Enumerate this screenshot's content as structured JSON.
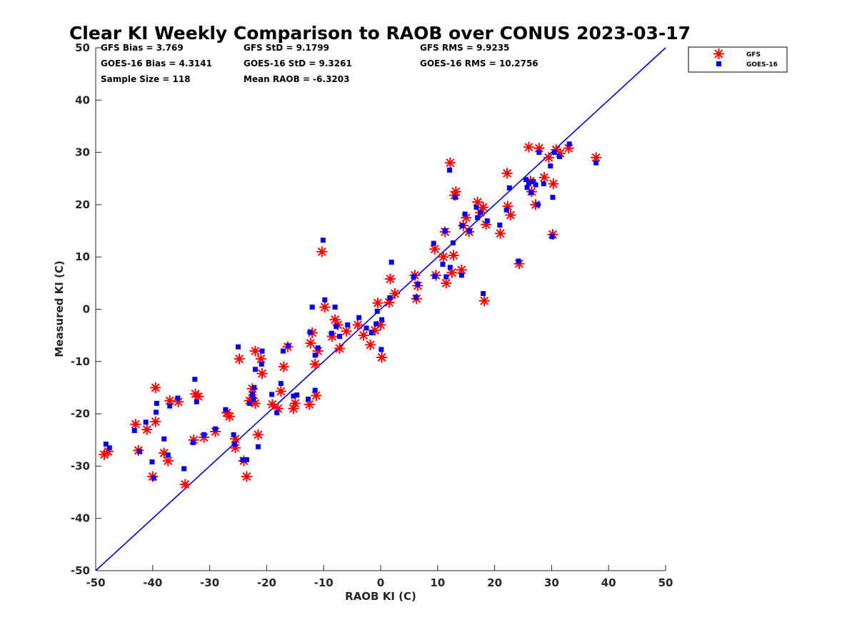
{
  "chart_data": {
    "type": "scatter",
    "title": "Clear KI Weekly Comparison to RAOB over CONUS 2023-03-17",
    "xlabel": "RAOB KI (C)",
    "ylabel": "Measured KI (C)",
    "xlim": [
      -50,
      50
    ],
    "ylim": [
      -50,
      50
    ],
    "xticks": [
      -50,
      -40,
      -30,
      -20,
      -10,
      0,
      10,
      20,
      30,
      40,
      50
    ],
    "yticks": [
      -50,
      -40,
      -30,
      -20,
      -10,
      0,
      10,
      20,
      30,
      40,
      50
    ],
    "grid": false,
    "legend_position": "top-right outside",
    "reference_line": {
      "x": [
        -50,
        50
      ],
      "y": [
        -50,
        50
      ],
      "color": "#0000cc"
    },
    "stats": {
      "gfs_bias": "GFS Bias = 3.769",
      "goes_bias": "GOES-16 Bias = 4.3141",
      "sample_size": "Sample Size = 118",
      "gfs_std": "GFS StD = 9.1799",
      "goes_std": "GOES-16 StD = 9.3261",
      "mean_raob": "Mean RAOB = -6.3203",
      "gfs_rms": "GFS RMS = 9.9235",
      "goes_rms": "GOES-16 RMS = 10.2756"
    },
    "series": [
      {
        "name": "GFS",
        "marker": "asterisk",
        "color": "#ff0000",
        "points": [
          [
            -48.5,
            -27.8
          ],
          [
            -47.8,
            -27.2
          ],
          [
            -43,
            -22
          ],
          [
            -42.5,
            -27
          ],
          [
            -41,
            -23
          ],
          [
            -39.5,
            -21.5
          ],
          [
            -39.5,
            -15
          ],
          [
            -40,
            -32
          ],
          [
            -38,
            -27.5
          ],
          [
            -37.3,
            -29
          ],
          [
            -37,
            -17.5
          ],
          [
            -35.5,
            -17.7
          ],
          [
            -34.3,
            -33.5
          ],
          [
            -32.5,
            -16.2
          ],
          [
            -32.8,
            -25
          ],
          [
            -32,
            -16.7
          ],
          [
            -31,
            -24.5
          ],
          [
            -29,
            -23.4
          ],
          [
            -27,
            -19.8
          ],
          [
            -26.5,
            -20.5
          ],
          [
            -25.5,
            -24.8
          ],
          [
            -25.5,
            -26.5
          ],
          [
            -24.8,
            -9.5
          ],
          [
            -24,
            -29
          ],
          [
            -23.5,
            -32
          ],
          [
            -23,
            -17.5
          ],
          [
            -22.5,
            -17
          ],
          [
            -22.5,
            -15.2
          ],
          [
            -22,
            -18
          ],
          [
            -22,
            -8
          ],
          [
            -21.5,
            -24
          ],
          [
            -21,
            -9.5
          ],
          [
            -20.8,
            -12.3
          ],
          [
            -19,
            -18.2
          ],
          [
            -18,
            -19
          ],
          [
            -17.5,
            -15.7
          ],
          [
            -17,
            -11
          ],
          [
            -16.3,
            -7.2
          ],
          [
            -15.3,
            -19
          ],
          [
            -15,
            -18
          ],
          [
            -12.5,
            -18.2
          ],
          [
            -12.3,
            -6.5
          ],
          [
            -12,
            -4.5
          ],
          [
            -11.5,
            -10.5
          ],
          [
            -11.3,
            -16.5
          ],
          [
            -11,
            -8
          ],
          [
            -9.8,
            0.4
          ],
          [
            -10.3,
            11
          ],
          [
            -8.5,
            -5.2
          ],
          [
            -8,
            -2
          ],
          [
            -7.5,
            -3
          ],
          [
            -7.2,
            -7.5
          ],
          [
            -6,
            -4.2
          ],
          [
            -4,
            -3
          ],
          [
            -3,
            -5
          ],
          [
            -1.8,
            -6.8
          ],
          [
            -1,
            -4
          ],
          [
            -0.5,
            1.2
          ],
          [
            0,
            -3
          ],
          [
            0.2,
            -9.2
          ],
          [
            1.5,
            1.3
          ],
          [
            1.7,
            5.8
          ],
          [
            2.5,
            3
          ],
          [
            6,
            6.5
          ],
          [
            6.5,
            4.5
          ],
          [
            6.3,
            2
          ],
          [
            9.5,
            11.5
          ],
          [
            9.7,
            6.5
          ],
          [
            11,
            10
          ],
          [
            11.3,
            14.8
          ],
          [
            11.5,
            5
          ],
          [
            12.2,
            28
          ],
          [
            12.5,
            7
          ],
          [
            12.8,
            10.3
          ],
          [
            13.2,
            22.5
          ],
          [
            13,
            21.8
          ],
          [
            14.2,
            7.5
          ],
          [
            14.5,
            16
          ],
          [
            15,
            17.5
          ],
          [
            15.5,
            14.8
          ],
          [
            17,
            20.5
          ],
          [
            17.5,
            18.5
          ],
          [
            18,
            19.5
          ],
          [
            18.2,
            1.6
          ],
          [
            18.5,
            16.2
          ],
          [
            21,
            14.5
          ],
          [
            22.2,
            26
          ],
          [
            22.3,
            19.7
          ],
          [
            22.8,
            18
          ],
          [
            24.3,
            8.7
          ],
          [
            26,
            31
          ],
          [
            26.3,
            24.5
          ],
          [
            26.5,
            22.5
          ],
          [
            27.2,
            20
          ],
          [
            27.8,
            30.8
          ],
          [
            28.7,
            25.2
          ],
          [
            29.5,
            29
          ],
          [
            30.2,
            14.3
          ],
          [
            30.3,
            24
          ],
          [
            30.8,
            30.5
          ],
          [
            31.5,
            29.8
          ],
          [
            33,
            30.8
          ],
          [
            37.8,
            29
          ]
        ]
      },
      {
        "name": "GOES-16",
        "marker": "square",
        "color": "#0000ee",
        "points": [
          [
            -48.2,
            -25.8
          ],
          [
            -47.6,
            -26.5
          ],
          [
            -43.2,
            -23.2
          ],
          [
            -42.3,
            -27.2
          ],
          [
            -41.2,
            -21.6
          ],
          [
            -39.8,
            -32.3
          ],
          [
            -40.1,
            -29.2
          ],
          [
            -39.4,
            -19.7
          ],
          [
            -39.3,
            -18
          ],
          [
            -38,
            -24.8
          ],
          [
            -37.3,
            -27.9
          ],
          [
            -37,
            -18.5
          ],
          [
            -35.6,
            -17
          ],
          [
            -34.5,
            -30.5
          ],
          [
            -32.9,
            -25.5
          ],
          [
            -32.3,
            -17.7
          ],
          [
            -32.6,
            -13.4
          ],
          [
            -31,
            -24
          ],
          [
            -29,
            -22.9
          ],
          [
            -27.2,
            -19.2
          ],
          [
            -25.8,
            -24
          ],
          [
            -25.6,
            -25.8
          ],
          [
            -25,
            -7.2
          ],
          [
            -24.2,
            -28.8
          ],
          [
            -23.5,
            -28.8
          ],
          [
            -23,
            -18
          ],
          [
            -22.5,
            -16.2
          ],
          [
            -22.3,
            -17.2
          ],
          [
            -22.2,
            -15
          ],
          [
            -22,
            -11.5
          ],
          [
            -21.5,
            -26.3
          ],
          [
            -20.8,
            -8
          ],
          [
            -20.9,
            -10.5
          ],
          [
            -19.1,
            -16.3
          ],
          [
            -18.2,
            -19.8
          ],
          [
            -17.5,
            -14.2
          ],
          [
            -17.1,
            -8
          ],
          [
            -16.2,
            -7
          ],
          [
            -15.3,
            -16.6
          ],
          [
            -14.7,
            -16.4
          ],
          [
            -12.7,
            -17.2
          ],
          [
            -12.4,
            -4.4
          ],
          [
            -12,
            0.4
          ],
          [
            -11.5,
            -15.5
          ],
          [
            -11.5,
            -8.8
          ],
          [
            -11,
            -7.4
          ],
          [
            -10.1,
            13.2
          ],
          [
            -9.8,
            1.8
          ],
          [
            -8.6,
            -4.6
          ],
          [
            -8,
            0.4
          ],
          [
            -7.8,
            -3.3
          ],
          [
            -7.2,
            -5.2
          ],
          [
            -5.8,
            -3
          ],
          [
            -3.8,
            -1.6
          ],
          [
            -2.5,
            -3.6
          ],
          [
            -1.6,
            -4.5
          ],
          [
            -0.8,
            -2.8
          ],
          [
            -0.6,
            -0.4
          ],
          [
            0.2,
            -2
          ],
          [
            0.1,
            -7.7
          ],
          [
            1.6,
            2.2
          ],
          [
            1.9,
            9
          ],
          [
            5.8,
            6.2
          ],
          [
            6.2,
            2.3
          ],
          [
            6.5,
            4.8
          ],
          [
            9.3,
            12.6
          ],
          [
            9.5,
            6.3
          ],
          [
            10.9,
            8.6
          ],
          [
            11.3,
            15
          ],
          [
            11.5,
            6.2
          ],
          [
            12.1,
            26.6
          ],
          [
            12.2,
            8
          ],
          [
            12.7,
            12.7
          ],
          [
            13.1,
            21.4
          ],
          [
            14.2,
            6.5
          ],
          [
            14.3,
            16
          ],
          [
            14.8,
            18.2
          ],
          [
            15.6,
            15
          ],
          [
            16.8,
            19.5
          ],
          [
            17,
            17.5
          ],
          [
            17.5,
            18.5
          ],
          [
            18,
            3
          ],
          [
            18.7,
            16.9
          ],
          [
            20.9,
            16.1
          ],
          [
            22.1,
            19
          ],
          [
            22.6,
            23.2
          ],
          [
            24.2,
            9.2
          ],
          [
            25.5,
            24.8
          ],
          [
            25.7,
            23.3
          ],
          [
            26,
            24.2
          ],
          [
            26.4,
            22.3
          ],
          [
            26.8,
            24.4
          ],
          [
            27.2,
            23.8
          ],
          [
            27.8,
            30
          ],
          [
            27.6,
            20
          ],
          [
            28.6,
            24
          ],
          [
            29.8,
            27.4
          ],
          [
            30.1,
            13.9
          ],
          [
            30.2,
            21.4
          ],
          [
            30.5,
            30
          ],
          [
            31.4,
            29.2
          ],
          [
            33.1,
            31.6
          ],
          [
            37.8,
            28
          ]
        ]
      }
    ]
  }
}
